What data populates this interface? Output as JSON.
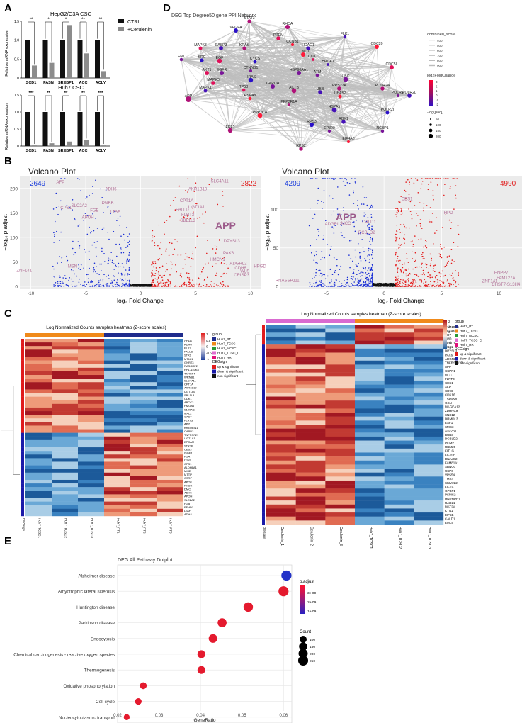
{
  "panels": {
    "A": "A",
    "B": "B",
    "C": "C",
    "D": "D",
    "E": "E"
  },
  "panelA": {
    "legend": [
      "CTRL",
      "+Cerulenin"
    ],
    "colors": {
      "ctrl": "#111111",
      "treat": "#8c8c8c"
    },
    "charts": [
      {
        "title": "HepG2/C3A CSC",
        "ylabel": "Relative mRNA expression",
        "categories": [
          "SCD1",
          "FASN",
          "SREBP1",
          "ACC",
          "ACLY"
        ],
        "ctrl": [
          1,
          1,
          1,
          1,
          1
        ],
        "treat": [
          0.33,
          0.4,
          1.4,
          0.65,
          0.18
        ],
        "sig": [
          "**",
          "*",
          "*",
          "**",
          "**"
        ],
        "ylim": [
          0,
          1.5
        ],
        "ticks": [
          "0",
          "0.5",
          "1.0",
          "1.5"
        ]
      },
      {
        "title": "Huh7 CSC",
        "ylabel": "Relative mRNA expression",
        "categories": [
          "SCD1",
          "FASN",
          "SREBP1",
          "ACC",
          "ACLY"
        ],
        "ctrl": [
          1,
          1,
          1,
          1,
          1
        ],
        "treat": [
          0.02,
          0.08,
          0.13,
          0.18,
          0.02
        ],
        "sig": [
          "***",
          "**",
          "**",
          "**",
          "***"
        ],
        "ylim": [
          0,
          1.5
        ],
        "ticks": [
          "0",
          "0.5",
          "1.0",
          "1.5"
        ]
      }
    ]
  },
  "panelB": {
    "xlabel": "log₂ Fold Change",
    "ylabel": "−log₁₀ p.adjust",
    "plots": [
      {
        "title": "Volcano Plot",
        "down": "2649",
        "up": "2822",
        "highlight": "APP",
        "xticks": [
          "-10",
          "-5",
          "0",
          "5",
          "10"
        ],
        "yticks": [
          "0",
          "50",
          "100",
          "150",
          "200"
        ],
        "genes": [
          "AFP",
          "ADH6",
          "SLC4A11",
          "AKR1B10",
          "DGKK",
          "CPT1A",
          "SLC2A2",
          "CPS1",
          "FGB",
          "PALLD",
          "UGT1A1",
          "LTAF",
          "APOH",
          "FLRT3",
          "SBL1L3",
          "DPYSL3",
          "PAX6",
          "MSN",
          "ZNF141",
          "ADGRL2",
          "HMCN1",
          "CDH6",
          "HPGD",
          "WLS",
          "CRISP3"
        ]
      },
      {
        "title": "Volcano Plot",
        "down": "4209",
        "up": "4990",
        "highlight": "APP",
        "xticks": [
          "-5",
          "0",
          "5",
          "10"
        ],
        "yticks": [
          "0",
          "50",
          "100"
        ],
        "genes": [
          "CES1",
          "HPD",
          "CALD1",
          "ADGRL2",
          "MCC",
          "DCBLD2",
          "ENPP7",
          "FAM127A",
          "ZNF141",
          "CHST7-S13H4",
          "RNASSP111"
        ]
      }
    ]
  },
  "panelC": {
    "titles": [
      "Log Normalized Counts samples heatmap (Z-score scales)",
      "Log Normalized Counts samples heatmap (Z-score scales)"
    ],
    "left": {
      "genes": [
        "CDH6",
        "ADH6",
        "PLK2",
        "PALLD",
        "STX1",
        "MT1L1",
        "GNRT3",
        "RASGRF2",
        "RP1-140K8",
        "TM4SF4",
        "WRNB1",
        "SLC4A11",
        "CPT1A",
        "AKR1B10",
        "UGT1A6",
        "SBL1L3",
        "CDK1",
        "ABCC3",
        "HMGA6",
        "S100A11",
        "MAL2",
        "CAST",
        "FLRT3",
        "APP",
        "KREMEN1",
        "CAPN2",
        "TNFRSF21",
        "UGT1A1",
        "EPCAM",
        "STX3B",
        "CES3",
        "ISGF1",
        "FGA",
        "ITIH2",
        "CPS1",
        "ALDH6A1",
        "MME",
        "MTTP",
        "CSRP",
        "APOE",
        "PHOX",
        "DMC",
        "ADH5",
        "APOH",
        "SLC2A2",
        "FGB",
        "EFHD1",
        "LTAF",
        "ADH4"
      ],
      "samples": [
        "Huh7_TCSC1",
        "Huh7_TCSC2",
        "Huh7_TCSC3",
        "Huh7_PT1",
        "Huh7_PT2",
        "Huh7_PT3"
      ],
      "legend_group": [
        "Huh7_PT",
        "Huh7_TCSC",
        "Huh7_MCSC",
        "Huh7_TCSC_C",
        "Huh7_RR"
      ],
      "legend_sign": [
        "up & significant",
        "down & significant",
        "non-significant"
      ],
      "scale": [
        "1",
        "0.5",
        "0",
        "-0.5",
        "-1"
      ]
    },
    "right": {
      "genes": [
        "FAM101B",
        "SLC44A2",
        "CD7",
        "HPD",
        "EFHD1",
        "AGR2",
        "DPYSL3",
        "PAX6",
        "ADGRL2",
        "TNFRSF11B",
        "APP",
        "CSPP1",
        "MCC",
        "FLRT3",
        "CES1",
        "AFP",
        "CD96",
        "CDK16",
        "TSPAN8",
        "GSN",
        "MAGEA12",
        "ZDHHC9",
        "SNX12",
        "DRMDL3",
        "ESF1",
        "SMC3",
        "ATP2B1",
        "BUB3",
        "DCBLD2",
        "PLIM2",
        "RBM25",
        "KITLG",
        "KIF20B",
        "DNAJC2",
        "FAM81A1",
        "SBNO1",
        "USP6",
        "VPS54",
        "TMX4",
        "SKIV2L2",
        "KIF2A",
        "GPBP1",
        "PSMC2",
        "HNRNPH1",
        "RAD21",
        "MAT2A",
        "KTN1",
        "EIF5B",
        "CALD1",
        "EML4"
      ],
      "samples": [
        "Cerulenin_1",
        "Cerulenin_2",
        "Cerulenin_3",
        "Huh7_TCSC1",
        "Huh7_TCSC2",
        "Huh7_TCSC3"
      ],
      "legend_group": [
        "Huh7_PT",
        "Huh7_TCSC",
        "Huh7_MCSC",
        "Huh7_TCSC_C",
        "Huh7_RR"
      ],
      "legend_sign": [
        "up & significant",
        "down & significant",
        "non-significant"
      ],
      "scale": [
        "2",
        "1",
        "0",
        "-1",
        "-2",
        "-3"
      ]
    },
    "legend_titles": {
      "group": "group",
      "degsign": "DEGsign"
    }
  },
  "panelD": {
    "title": "DEG Top Degree50 gene PPI Network",
    "nodes": [
      [
        "STAT3",
        352,
        30
      ],
      [
        "RHOA",
        406,
        38
      ],
      [
        "VEGFA",
        333,
        43
      ],
      [
        "FLK1",
        487,
        52
      ],
      [
        "PTEN",
        393,
        54
      ],
      [
        "CCNB1",
        413,
        63
      ],
      [
        "HDAC1",
        435,
        68
      ],
      [
        "CDC20",
        532,
        66
      ],
      [
        "MAPK8",
        283,
        68
      ],
      [
        "CASP3",
        312,
        68
      ],
      [
        "KRAS",
        345,
        68
      ],
      [
        "CCND1",
        428,
        77
      ],
      [
        "CDK1",
        442,
        84
      ],
      [
        "FN1",
        256,
        84
      ],
      [
        "SRC",
        285,
        85
      ],
      [
        "EGF",
        310,
        86
      ],
      [
        "CYCS",
        360,
        87
      ],
      [
        "BRCA1",
        463,
        91
      ],
      [
        "CDC5L",
        553,
        95
      ],
      [
        "CTNNB1",
        354,
        100
      ],
      [
        "AKT1",
        292,
        103
      ],
      [
        "EGFR",
        313,
        103
      ],
      [
        "HRAS",
        354,
        113
      ],
      [
        "HSP90AA1",
        422,
        103
      ],
      [
        "ATM",
        448,
        106
      ],
      [
        "UBC",
        488,
        112
      ],
      [
        "MAPK3",
        301,
        117
      ],
      [
        "GAPDH",
        385,
        122
      ],
      [
        "RPS27A",
        479,
        125
      ],
      [
        "POLR2A",
        540,
        125
      ],
      [
        "MAPK1",
        290,
        128
      ],
      [
        "TP53",
        344,
        127
      ],
      [
        "ACTB",
        415,
        128
      ],
      [
        "UBB",
        452,
        130
      ],
      [
        "UBA52",
        480,
        136
      ],
      [
        "POLR2I",
        562,
        135
      ],
      [
        "POLR2L",
        578,
        135
      ],
      [
        "APP",
        266,
        140
      ],
      [
        "HSPA8",
        353,
        139
      ],
      [
        "PPP2R1A",
        408,
        148
      ],
      [
        "POLR2I",
        547,
        159
      ],
      [
        "HSPA5",
        472,
        155
      ],
      [
        "PPP2CA",
        367,
        163
      ],
      [
        "RBX1",
        485,
        172
      ],
      [
        "RPS3",
        440,
        176
      ],
      [
        "EEF2",
        325,
        184
      ],
      [
        "EP300",
        465,
        185
      ],
      [
        "NCBP1",
        540,
        185
      ],
      [
        "EIF4A3",
        492,
        200
      ],
      [
        "RPS2",
        425,
        210
      ]
    ],
    "legend": {
      "combined_score": "combined_score",
      "score_vals": [
        "400",
        "500",
        "600",
        "700",
        "800",
        "900"
      ],
      "fc": "log2FoldChange",
      "fc_vals": [
        "3",
        "2",
        "1",
        "0",
        "-1",
        "-2"
      ],
      "padj": "-log(padj)",
      "padj_vals": [
        "50",
        "100",
        "150",
        "200"
      ]
    }
  },
  "chart_data": {
    "type": "scatter",
    "title": "DEG All Pathway Dotplot",
    "xlabel": "GeneRatio",
    "ylabel": "",
    "xlim": [
      0.02,
      0.062
    ],
    "xticks": [
      "0.02",
      "0.03",
      "0.04",
      "0.05",
      "0.06"
    ],
    "categories": [
      "Alzheimer disease",
      "Amyotrophic lateral sclerosis",
      "Huntington disease",
      "Parkinson disease",
      "Endocytosis",
      "Chemical carcinogenesis - reactive oxygen species",
      "Thermogenesis",
      "Oxidative phosphorylation",
      "Cell cycle",
      "Nucleocytoplasmic transport"
    ],
    "x": [
      0.0607,
      0.06,
      0.0515,
      0.0452,
      0.043,
      0.0402,
      0.0402,
      0.0262,
      0.025,
      0.0222
    ],
    "count": [
      260,
      255,
      220,
      190,
      170,
      135,
      130,
      90,
      80,
      60
    ],
    "p_adjust": [
      3e-09,
      1e-09,
      1.1e-09,
      1.1e-09,
      1e-09,
      1e-09,
      1e-09,
      1e-09,
      1e-09,
      1e-09
    ],
    "legend": {
      "padj_title": "p.adjust",
      "padj_ticks": [
        "1e-09",
        "2e-09",
        "3e-09"
      ],
      "count_title": "Count",
      "count_vals": [
        "100",
        "150",
        "200",
        "250"
      ]
    }
  }
}
